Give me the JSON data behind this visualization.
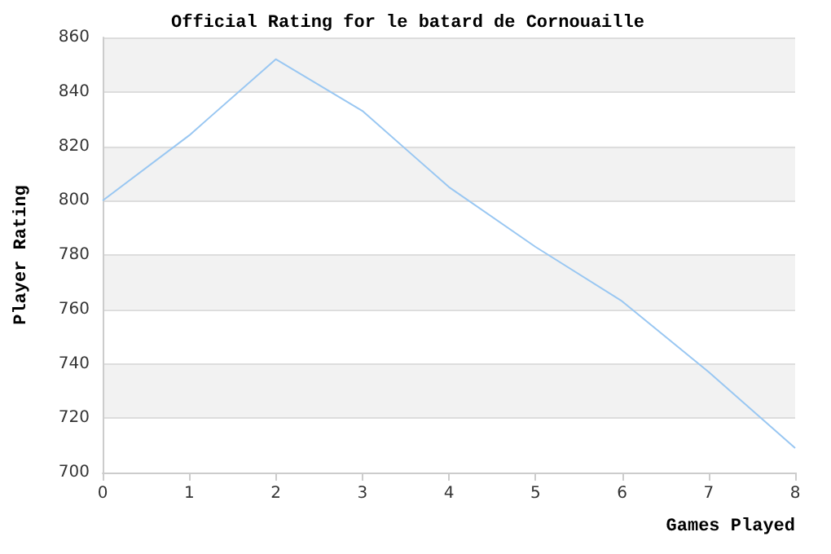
{
  "chart_data": {
    "type": "line",
    "title": "Official Rating for le batard de Cornouaille",
    "xlabel": "Games Played",
    "ylabel": "Player Rating",
    "x": [
      0,
      1,
      2,
      3,
      4,
      5,
      6,
      7,
      8
    ],
    "series": [
      {
        "color": "#99c7f2",
        "values": [
          800,
          824,
          852,
          833,
          805,
          783,
          763,
          737,
          709
        ]
      }
    ],
    "xlim": [
      0,
      8
    ],
    "xticks": [
      0,
      1,
      2,
      3,
      4,
      5,
      6,
      7,
      8
    ],
    "ylim": [
      700,
      860
    ],
    "yticks": [
      700,
      720,
      740,
      760,
      780,
      800,
      820,
      840,
      860
    ],
    "grid": "y",
    "marker": "none",
    "line_style": "solid"
  }
}
